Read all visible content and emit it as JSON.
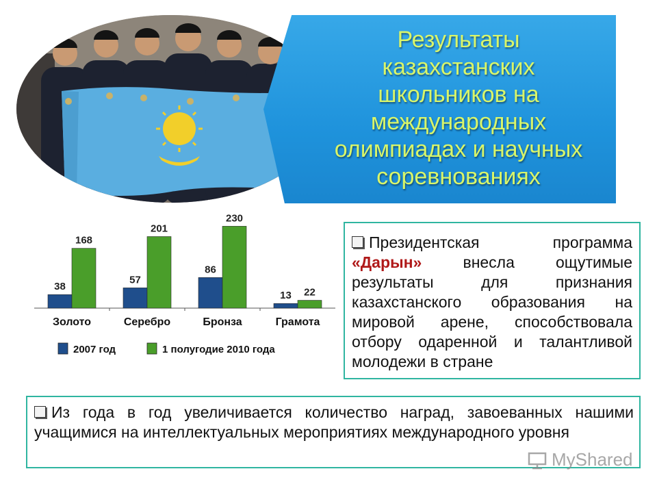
{
  "title": "Результаты\nказахстанских\nшкольников на\nмеждународных\nолимпиадах и научных\nсоревнованиях",
  "chart_data": {
    "type": "bar",
    "categories": [
      "Золото",
      "Серебро",
      "Бронза",
      "Грамота"
    ],
    "series": [
      {
        "name": "2007 год",
        "values": [
          38,
          57,
          86,
          13
        ],
        "color": "#1f4e8c"
      },
      {
        "name": "1 полугодие 2010 года",
        "values": [
          168,
          201,
          230,
          22
        ],
        "color": "#4a9e2a"
      }
    ],
    "ylim": [
      0,
      250
    ],
    "grid": false,
    "legend": "bottom"
  },
  "box_right": {
    "text_1": "Президентская программа",
    "highlight": "«Дарын»",
    "text_2": "внесла ощутимые результаты для признания казахстанского образования на мировой арене, способствовала отбору одаренной и талантливой молодежи в стране"
  },
  "box_bottom": {
    "text": "Из года в год увеличивается количество наград, завоеванных нашими учащимися на интеллектуальных мероприятиях международного уровня"
  },
  "watermark": "MyShared"
}
